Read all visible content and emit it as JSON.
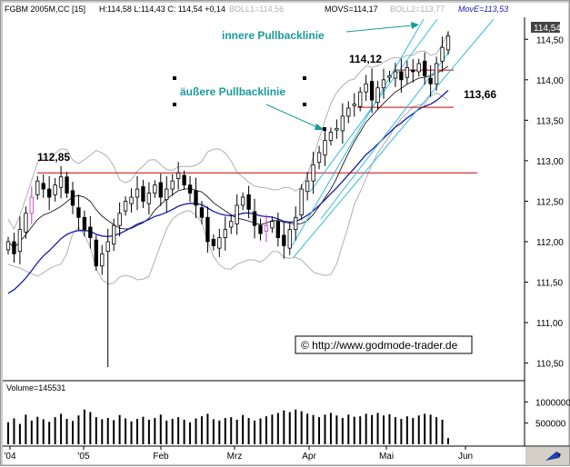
{
  "header": {
    "symbol": "FGBM 2005M,CC [15]",
    "ohlc": "H:114,58 L:114,43 C: 114,54 +0,14",
    "boll1": "BOLL1=114,56",
    "movs": "MOVS=114,17",
    "boll2": "BOLL2=113,77",
    "move": "MovE=113,53"
  },
  "colors": {
    "candle": "#000000",
    "resistance": "#cc0000",
    "channel": "#33bbe0",
    "bands": "#b0b0b0",
    "ema": "#1a1aa8",
    "highlight": "#cc33cc",
    "annotation_text": "#1a9a9a",
    "last_price_bg": "#444444"
  },
  "chart_data": [
    {
      "type": "candlestick",
      "title": "",
      "x_tick_labels": [
        "'04",
        "'05",
        "Feb",
        "Mrz",
        "Apr",
        "Mai",
        "Jun"
      ],
      "y_tick_labels": [
        "110,50",
        "111,00",
        "111,50",
        "112,00",
        "112,50",
        "113,00",
        "113,50",
        "114,00",
        "114,50"
      ],
      "ylim": [
        110.35,
        114.75
      ],
      "last_price_label": "114,54",
      "closes": [
        112.0,
        111.85,
        112.15,
        112.35,
        112.55,
        112.75,
        112.65,
        112.55,
        112.7,
        112.8,
        112.6,
        112.45,
        112.3,
        112.15,
        112.05,
        111.7,
        111.85,
        112.0,
        112.2,
        112.35,
        112.5,
        112.55,
        112.65,
        112.5,
        112.6,
        112.7,
        112.55,
        112.65,
        112.75,
        112.85,
        112.7,
        112.6,
        112.45,
        112.3,
        112.0,
        111.95,
        112.05,
        112.15,
        112.25,
        112.45,
        112.55,
        112.4,
        112.2,
        112.1,
        112.2,
        112.25,
        112.05,
        111.95,
        112.15,
        112.3,
        112.65,
        112.75,
        112.95,
        113.1,
        113.25,
        113.35,
        113.4,
        113.55,
        113.65,
        113.7,
        113.85,
        113.95,
        113.75,
        113.9,
        114.0,
        114.05,
        114.1,
        114.0,
        114.15,
        114.1,
        114.2,
        114.05,
        113.95,
        114.2,
        114.4,
        114.54
      ],
      "levels": [
        {
          "value": 112.85,
          "label": "112,85"
        },
        {
          "value": 114.12,
          "label": "114,12"
        },
        {
          "value": 113.66,
          "label": "113,66"
        }
      ],
      "annotations": [
        "innere Pullbacklinie",
        "äußere Pullbacklinie"
      ]
    },
    {
      "type": "bar",
      "title": "Volume=145531",
      "y_tick_labels": [
        "500000",
        "1000000"
      ],
      "ylim": [
        0,
        1200000
      ],
      "values": [
        520000,
        610000,
        480000,
        700000,
        560000,
        650000,
        590000,
        530000,
        640000,
        720000,
        600000,
        550000,
        680000,
        820000,
        760000,
        640000,
        590000,
        620000,
        570000,
        690000,
        610000,
        540000,
        600000,
        650000,
        580000,
        620000,
        700000,
        560000,
        600000,
        640000,
        580000,
        520000,
        610000,
        660000,
        720000,
        590000,
        560000,
        620000,
        640000,
        580000,
        690000,
        620000,
        560000,
        610000,
        660000,
        700000,
        740000,
        800000,
        760000,
        820000,
        780000,
        720000,
        690000,
        640000,
        700000,
        740000,
        680000,
        620000,
        700000,
        650000,
        660000,
        720000,
        690000,
        740000,
        680000,
        710000,
        640000,
        600000,
        660000,
        620000,
        680000,
        720000,
        700000,
        640000,
        580000,
        145531
      ]
    }
  ],
  "copyright": "© http://www.godmode-trader.de"
}
